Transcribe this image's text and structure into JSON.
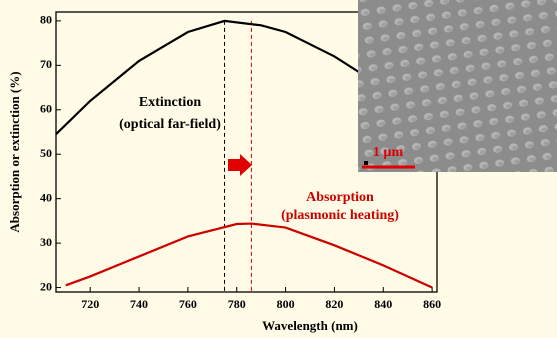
{
  "chart_data": {
    "type": "line",
    "xlabel": "Wavelength (nm)",
    "ylabel": "Absorption or extinction (%)",
    "xlim": [
      706,
      862
    ],
    "ylim": [
      19,
      82
    ],
    "xticks": [
      720,
      740,
      760,
      780,
      800,
      820,
      840,
      860
    ],
    "yticks": [
      20,
      30,
      40,
      50,
      60,
      70,
      80
    ],
    "series": [
      {
        "name": "Extinction",
        "subtitle": "(optical far-field)",
        "color": "#000000",
        "x": [
          706,
          720,
          740,
          760,
          775,
          790,
          800,
          820,
          840,
          860
        ],
        "values": [
          54.5,
          62,
          71,
          77.5,
          80,
          79,
          77.5,
          72,
          65,
          57
        ]
      },
      {
        "name": "Absorption",
        "subtitle": "(plasmonic heating)",
        "color": "#cc0000",
        "x": [
          710,
          720,
          740,
          760,
          780,
          786,
          800,
          820,
          840,
          860
        ],
        "values": [
          20.5,
          22.5,
          27,
          31.5,
          34.3,
          34.4,
          33.5,
          29.5,
          25,
          20
        ]
      }
    ],
    "vlines": [
      {
        "x": 775,
        "color": "#000000"
      },
      {
        "x": 786,
        "color": "#cc0000"
      }
    ],
    "inset": {
      "scale_label": "1 µm"
    }
  }
}
